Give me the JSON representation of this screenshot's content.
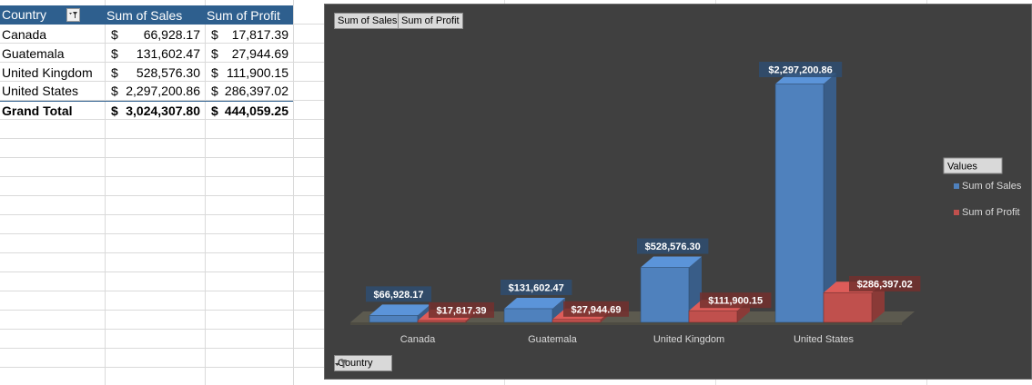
{
  "pivot": {
    "headers": {
      "country": "Country",
      "sales": "Sum of Sales",
      "profit": "Sum of Profit"
    },
    "currency": "$",
    "rows": [
      {
        "country": "Canada",
        "sales": "66,928.17",
        "profit": "17,817.39"
      },
      {
        "country": "Guatemala",
        "sales": "131,602.47",
        "profit": "27,944.69"
      },
      {
        "country": "United Kingdom",
        "sales": "528,576.30",
        "profit": "111,900.15"
      },
      {
        "country": "United States",
        "sales": "2,297,200.86",
        "profit": "286,397.02"
      }
    ],
    "total": {
      "label": "Grand Total",
      "sales": "3,024,307.80",
      "profit": "444,059.25"
    }
  },
  "chart_buttons": {
    "values": [
      "Sum of Sales",
      "Sum of Profit"
    ],
    "axis": "Country"
  },
  "colors": {
    "sales": "#4f81bd",
    "profit": "#c0504d"
  },
  "chart_data": {
    "type": "bar",
    "categories": [
      "Canada",
      "Guatemala",
      "United Kingdom",
      "United States"
    ],
    "series": [
      {
        "name": "Sum of Sales",
        "values": [
          66928.17,
          131602.47,
          528576.3,
          2297200.86
        ],
        "labels": [
          "$66,928.17",
          "$131,602.47",
          "$528,576.30",
          "$2,297,200.86"
        ]
      },
      {
        "name": "Sum of Profit",
        "values": [
          17817.39,
          27944.69,
          111900.15,
          286397.02
        ],
        "labels": [
          "$17,817.39",
          "$27,944.69",
          "$111,900.15",
          "$286,397.02"
        ]
      }
    ],
    "legend_title": "Values",
    "legend_placement": "right",
    "grid": false,
    "ylim": [
      0,
      2300000
    ]
  }
}
